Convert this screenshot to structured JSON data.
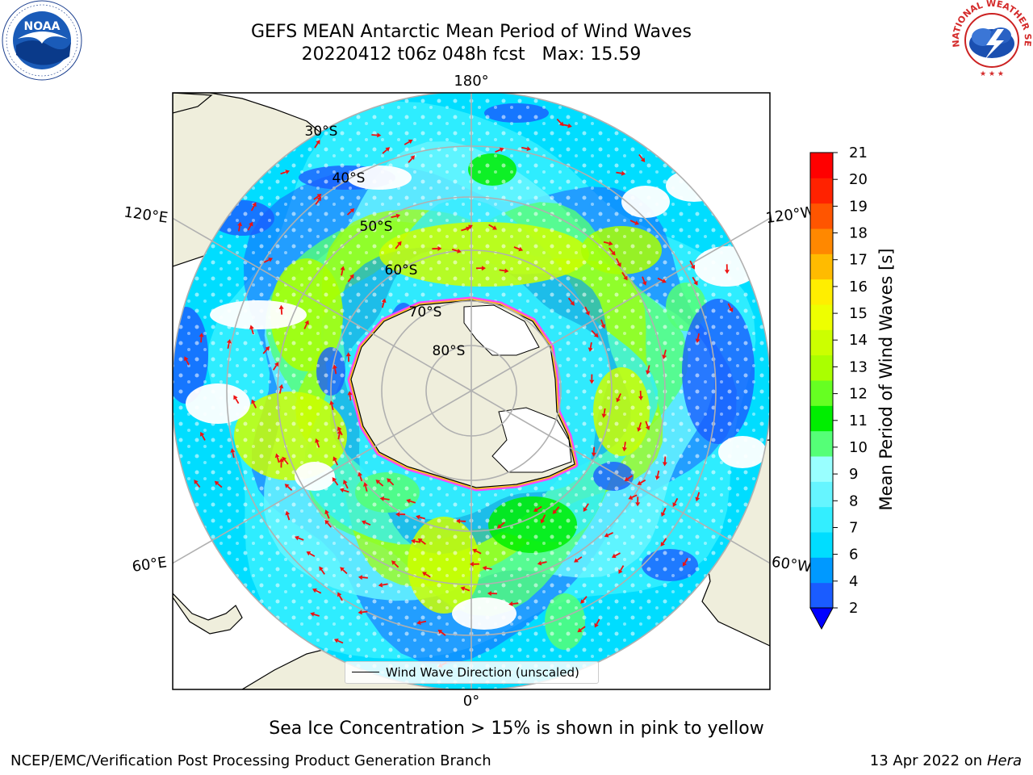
{
  "title": {
    "line1": "GEFS MEAN Antarctic Mean Period of Wind Waves",
    "line2": "20220412 t06z 048h fcst   Max: 15.59"
  },
  "map": {
    "projection": "south-polar-stereographic",
    "longitude_labels": [
      "180°",
      "120°E",
      "120°W",
      "60°E",
      "60°W",
      "0°"
    ],
    "latitude_labels": [
      "30°S",
      "40°S",
      "50°S",
      "60°S",
      "70°S",
      "80°S"
    ],
    "land_color": "#efeedc",
    "no_data_color": "#ffffff",
    "sea_ice_colors": [
      "#ff44ff",
      "#ffaa33",
      "#ffee33"
    ],
    "arrow_color": "#ee1111"
  },
  "legend": {
    "label": "Wind Wave Direction (unscaled)"
  },
  "colorbar": {
    "title": "Mean Period of Wind Waves [s]",
    "ticks": [
      "2",
      "4",
      "6",
      "7",
      "8",
      "9",
      "10",
      "11",
      "12",
      "13",
      "14",
      "15",
      "16",
      "17",
      "18",
      "19",
      "20",
      "21"
    ],
    "colors": [
      "#1a5cff",
      "#0099ff",
      "#00ddff",
      "#33eeff",
      "#66f5ff",
      "#99ffff",
      "#55ff77",
      "#00ee00",
      "#66ff22",
      "#aaff00",
      "#ccff00",
      "#eeff00",
      "#ffee00",
      "#ffbb00",
      "#ff8800",
      "#ff5500",
      "#ff2200",
      "#ff0000"
    ],
    "under_color": "#0000ff"
  },
  "caption": "Sea Ice Concentration > 15% is shown in pink to yellow",
  "footer": {
    "left": "NCEP/EMC/Verification Post Processing Product Generation Branch",
    "right_prefix": "13 Apr 2022 on ",
    "right_host": "Hera"
  },
  "logos": {
    "noaa_text": "NOAA",
    "nws_text": "NATIONAL WEATHER SERVICE"
  }
}
